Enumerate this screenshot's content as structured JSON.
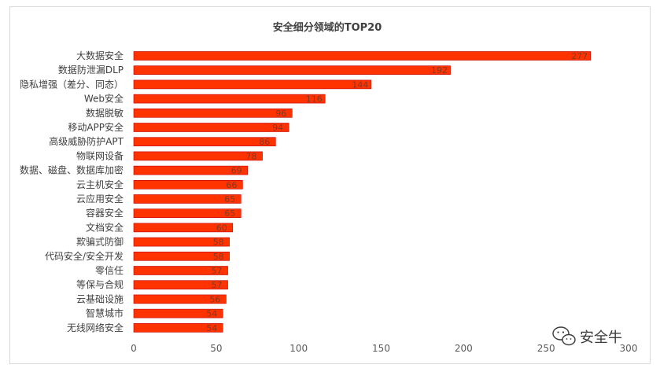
{
  "chart_data": {
    "type": "bar",
    "orientation": "horizontal",
    "title": "安全细分领域的TOP20",
    "categories": [
      "大数据安全",
      "数据防泄漏DLP",
      "隐私增强（差分、同态）",
      "Web安全",
      "数据脱敏",
      "移动APP安全",
      "高级威胁防护APT",
      "物联网设备",
      "数据、磁盘、数据库加密",
      "云主机安全",
      "云应用安全",
      "容器安全",
      "文档安全",
      "欺骗式防御",
      "代码安全/安全开发",
      "零信任",
      "等保与合规",
      "云基础设施",
      "智慧城市",
      "无线网络安全"
    ],
    "values": [
      277,
      192,
      144,
      116,
      96,
      94,
      86,
      78,
      69,
      66,
      65,
      65,
      60,
      58,
      58,
      57,
      57,
      56,
      54,
      54
    ],
    "xlim": [
      0,
      300
    ],
    "xticks": [
      "0",
      "50",
      "100",
      "150",
      "200",
      "250",
      "300"
    ],
    "xlabel": "",
    "ylabel": "",
    "grid": false,
    "legend": "none",
    "bar_color": "#ff3300",
    "bar_edge_color": "#c00000"
  },
  "watermark": {
    "text": "安全牛",
    "icon": "wechat-icon"
  }
}
